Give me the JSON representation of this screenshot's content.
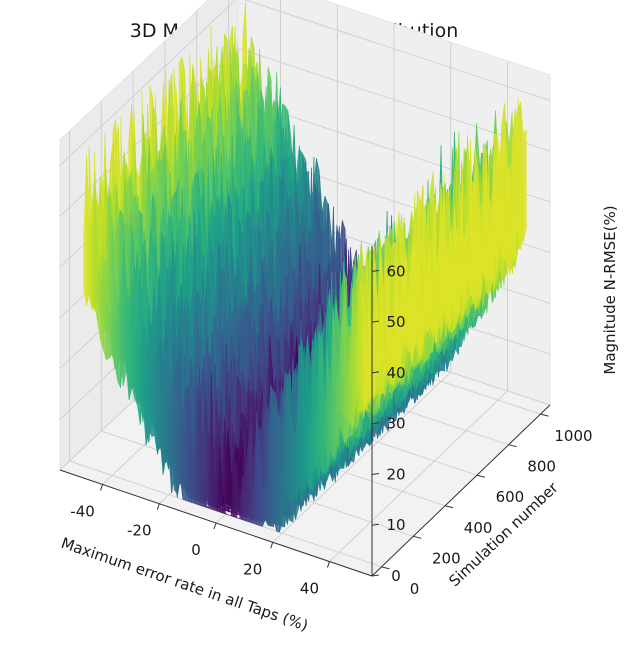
{
  "chart_data": {
    "type": "surface3d",
    "title": "3D Magnitude N-RMSE distribution",
    "xlabel": "Maximum error rate in all Taps (%)",
    "ylabel": "Simulation number",
    "zlabel": "Magnitude N-RMSE(%)",
    "xlim": [
      -55,
      55
    ],
    "ylim": [
      -60,
      1060
    ],
    "zlim": [
      0,
      65
    ],
    "xticks": [
      "-40",
      "-20",
      "0",
      "20",
      "40"
    ],
    "xtick_values": [
      -40,
      -20,
      0,
      20,
      40
    ],
    "yticks": [
      "0",
      "200",
      "400",
      "600",
      "800",
      "1000"
    ],
    "ytick_values": [
      0,
      200,
      400,
      600,
      800,
      1000
    ],
    "zticks": [
      "0",
      "10",
      "20",
      "30",
      "40",
      "50",
      "60"
    ],
    "ztick_values": [
      0,
      10,
      20,
      30,
      40,
      50,
      60
    ],
    "x_range": [
      -50,
      50
    ],
    "y_range": [
      0,
      1000
    ],
    "surface": {
      "description_model": "z ≈ |x|, noisy (noise up to about ±15)",
      "z_at_x": [
        [
          -50,
          50
        ],
        [
          -40,
          40
        ],
        [
          -20,
          20
        ],
        [
          0,
          0
        ],
        [
          20,
          20
        ],
        [
          40,
          40
        ],
        [
          50,
          50
        ]
      ],
      "max_z": 63,
      "min_z": 0
    },
    "colormap": "viridis",
    "grid": true
  }
}
